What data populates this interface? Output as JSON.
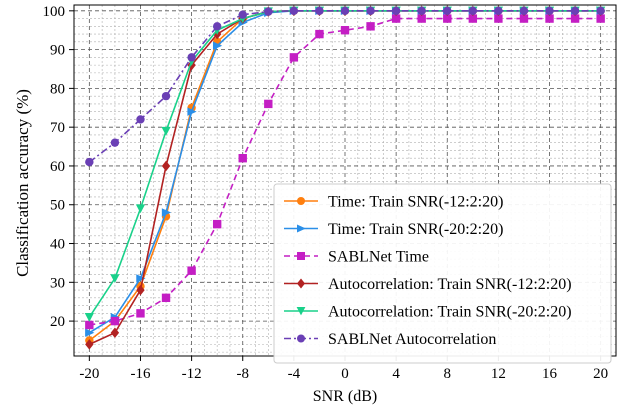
{
  "chart_data": {
    "type": "line",
    "xlabel": "SNR (dB)",
    "ylabel": "Classification accuracy (%)",
    "xlim": [
      -21.2,
      21.2
    ],
    "ylim": [
      11,
      101.5
    ],
    "xticks": [
      -20,
      -16,
      -12,
      -8,
      -4,
      0,
      4,
      8,
      12,
      16,
      20
    ],
    "yticks": [
      20,
      30,
      40,
      50,
      60,
      70,
      80,
      90,
      100
    ],
    "grid": true,
    "legend_position": "bottom-right",
    "x": [
      -20,
      -18,
      -16,
      -14,
      -12,
      -10,
      -8,
      -6,
      -4,
      -2,
      0,
      2,
      4,
      6,
      8,
      10,
      12,
      14,
      16,
      18,
      20
    ],
    "series": [
      {
        "name": "Time: Train SNR(-12:2:20)",
        "color": "#ff7f0e",
        "marker": "circle",
        "dash": "solid",
        "values": [
          15,
          20,
          29,
          47,
          75,
          92,
          98,
          99.8,
          100,
          100,
          100,
          100,
          100,
          100,
          100,
          100,
          100,
          100,
          100,
          100,
          100
        ]
      },
      {
        "name": "Time: Train SNR(-20:2:20)",
        "color": "#2b8fe8",
        "marker": "triangle-right",
        "dash": "solid",
        "values": [
          17,
          21,
          31,
          48,
          74,
          91,
          97,
          99.5,
          100,
          100,
          100,
          100,
          100,
          100,
          100,
          100,
          100,
          100,
          100,
          100,
          100
        ]
      },
      {
        "name": "SABLNet Time",
        "color": "#c41ec4",
        "marker": "square",
        "dash": "dashed",
        "values": [
          19,
          20,
          22,
          26,
          33,
          45,
          62,
          76,
          88,
          94,
          95,
          96,
          98,
          98,
          98,
          98,
          98,
          98,
          98,
          98,
          98
        ]
      },
      {
        "name": "Autocorrelation: Train SNR(-12:2:20)",
        "color": "#b22222",
        "marker": "diamond",
        "dash": "solid",
        "values": [
          14,
          17,
          28,
          60,
          86,
          94,
          98,
          99.8,
          100,
          100,
          100,
          100,
          100,
          100,
          100,
          100,
          100,
          100,
          100,
          100,
          100
        ]
      },
      {
        "name": "Autocorrelation: Train SNR(-20:2:20)",
        "color": "#19d18a",
        "marker": "triangle-down",
        "dash": "solid",
        "values": [
          21,
          31,
          49,
          69,
          87,
          95,
          98,
          99.8,
          100,
          100,
          100,
          100,
          100,
          100,
          100,
          100,
          100,
          100,
          100,
          100,
          100
        ]
      },
      {
        "name": "SABLNet Autocorrelation",
        "color": "#6a3fb5",
        "marker": "circle",
        "dash": "dashdot",
        "values": [
          61,
          66,
          72,
          78,
          88,
          96,
          99,
          99.8,
          100,
          100,
          100,
          100,
          100,
          100,
          100,
          100,
          100,
          100,
          100,
          100,
          100
        ]
      }
    ]
  }
}
